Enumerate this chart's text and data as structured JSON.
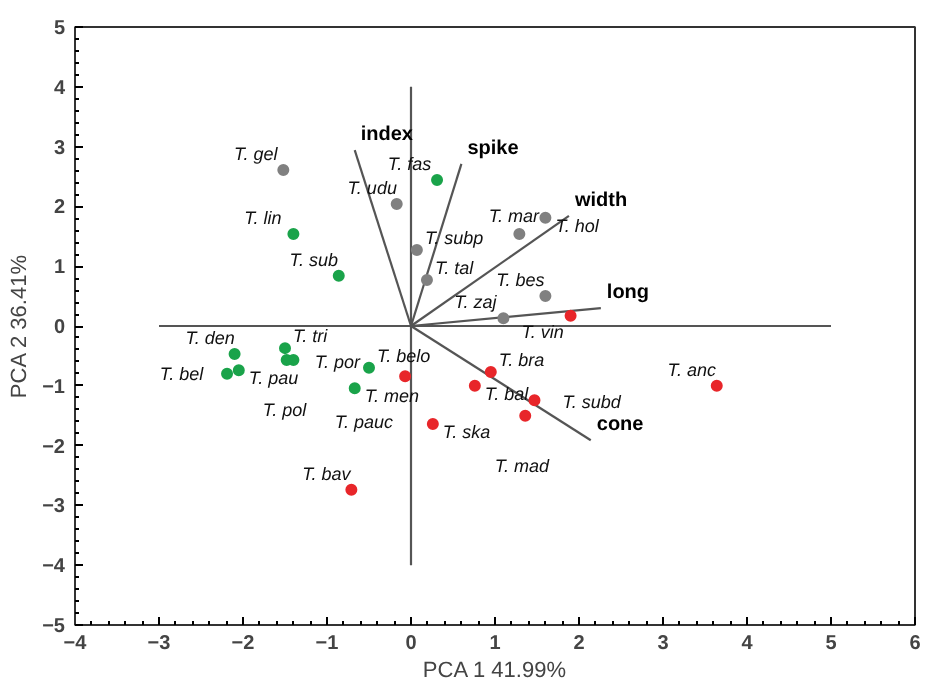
{
  "chart_data": {
    "type": "scatter",
    "xlabel": "PCA 1 41.99%",
    "ylabel": "PCA 2 36.41%",
    "xlim": [
      -4,
      6
    ],
    "ylim": [
      -5,
      5
    ],
    "xticks": [
      -4,
      -3,
      -2,
      -1,
      0,
      1,
      2,
      3,
      4,
      5,
      6
    ],
    "yticks": [
      -5,
      -4,
      -3,
      -2,
      -1,
      0,
      1,
      2,
      3,
      4,
      5
    ],
    "grid": false,
    "marker": "circle",
    "series": [
      {
        "color": "#1aa34a",
        "x": [
          -1.4,
          0.31,
          -0.86,
          -2.1,
          -2.05,
          -2.19,
          -1.5,
          -1.4,
          -1.48,
          -0.5,
          -0.67
        ],
        "values": [
          1.54,
          2.44,
          0.84,
          -0.47,
          -0.74,
          -0.8,
          -0.37,
          -0.57,
          -0.57,
          -0.7,
          -1.04
        ],
        "value_labels": [
          "T. lin",
          "T. fas",
          "T. sub",
          "T. den",
          "T. pau",
          "T. bel",
          "T. tri",
          "T. pol",
          "T. por",
          "T. belo",
          "T. men"
        ]
      },
      {
        "color": "#808080",
        "x": [
          -1.52,
          -0.17,
          0.07,
          0.19,
          1.29,
          1.6,
          1.6,
          1.1
        ],
        "values": [
          2.61,
          2.04,
          1.27,
          0.77,
          1.54,
          1.81,
          0.5,
          0.13
        ],
        "value_labels": [
          "T. gel",
          "T. udu",
          "T. subp",
          "T. tal",
          "T. mar",
          "T. hol",
          "T. bes",
          "T. zaj"
        ]
      },
      {
        "color": "#e8262a",
        "x": [
          1.9,
          3.64,
          -0.07,
          0.95,
          0.76,
          0.26,
          1.47,
          1.36,
          -0.71
        ],
        "values": [
          0.17,
          -1.0,
          -0.84,
          -0.77,
          -1.0,
          -1.64,
          -1.24,
          -1.5,
          -2.74
        ],
        "value_labels": [
          "T. vin",
          "T. anc",
          "T. pauc",
          "T. bra",
          "T. bal",
          "T. ska",
          "T. subd",
          "T. mad",
          "T. bav"
        ]
      },
      {
        "type": "line",
        "marker": "none",
        "color": "#555555",
        "x": [
          -3.0,
          5.0
        ],
        "values": [
          0,
          0
        ]
      },
      {
        "type": "line",
        "marker": "none",
        "color": "#555555",
        "x": [
          0,
          0
        ],
        "values": [
          4.0,
          -4.0
        ]
      },
      {
        "type": "line",
        "marker": "none",
        "color": "#555555",
        "x": [
          0,
          -0.67
        ],
        "values": [
          0,
          2.94
        ]
      },
      {
        "type": "line",
        "marker": "none",
        "color": "#555555",
        "x": [
          0,
          0.6
        ],
        "values": [
          0,
          2.71
        ]
      },
      {
        "type": "line",
        "marker": "none",
        "color": "#555555",
        "x": [
          0,
          1.88
        ],
        "values": [
          0,
          1.84
        ]
      },
      {
        "type": "line",
        "marker": "none",
        "color": "#555555",
        "x": [
          0,
          2.26
        ],
        "values": [
          0,
          0.3
        ]
      },
      {
        "type": "line",
        "marker": "none",
        "color": "#555555",
        "x": [
          0,
          2.14
        ],
        "values": [
          0,
          -1.91
        ]
      }
    ],
    "annotations": [
      {
        "text": "index",
        "x": -0.67,
        "y": 2.94
      },
      {
        "text": "spike",
        "x": 0.6,
        "y": 2.71
      },
      {
        "text": "width",
        "x": 1.88,
        "y": 1.84
      },
      {
        "text": "long",
        "x": 2.26,
        "y": 0.3
      },
      {
        "text": "cone",
        "x": 2.14,
        "y": -1.91
      }
    ]
  }
}
